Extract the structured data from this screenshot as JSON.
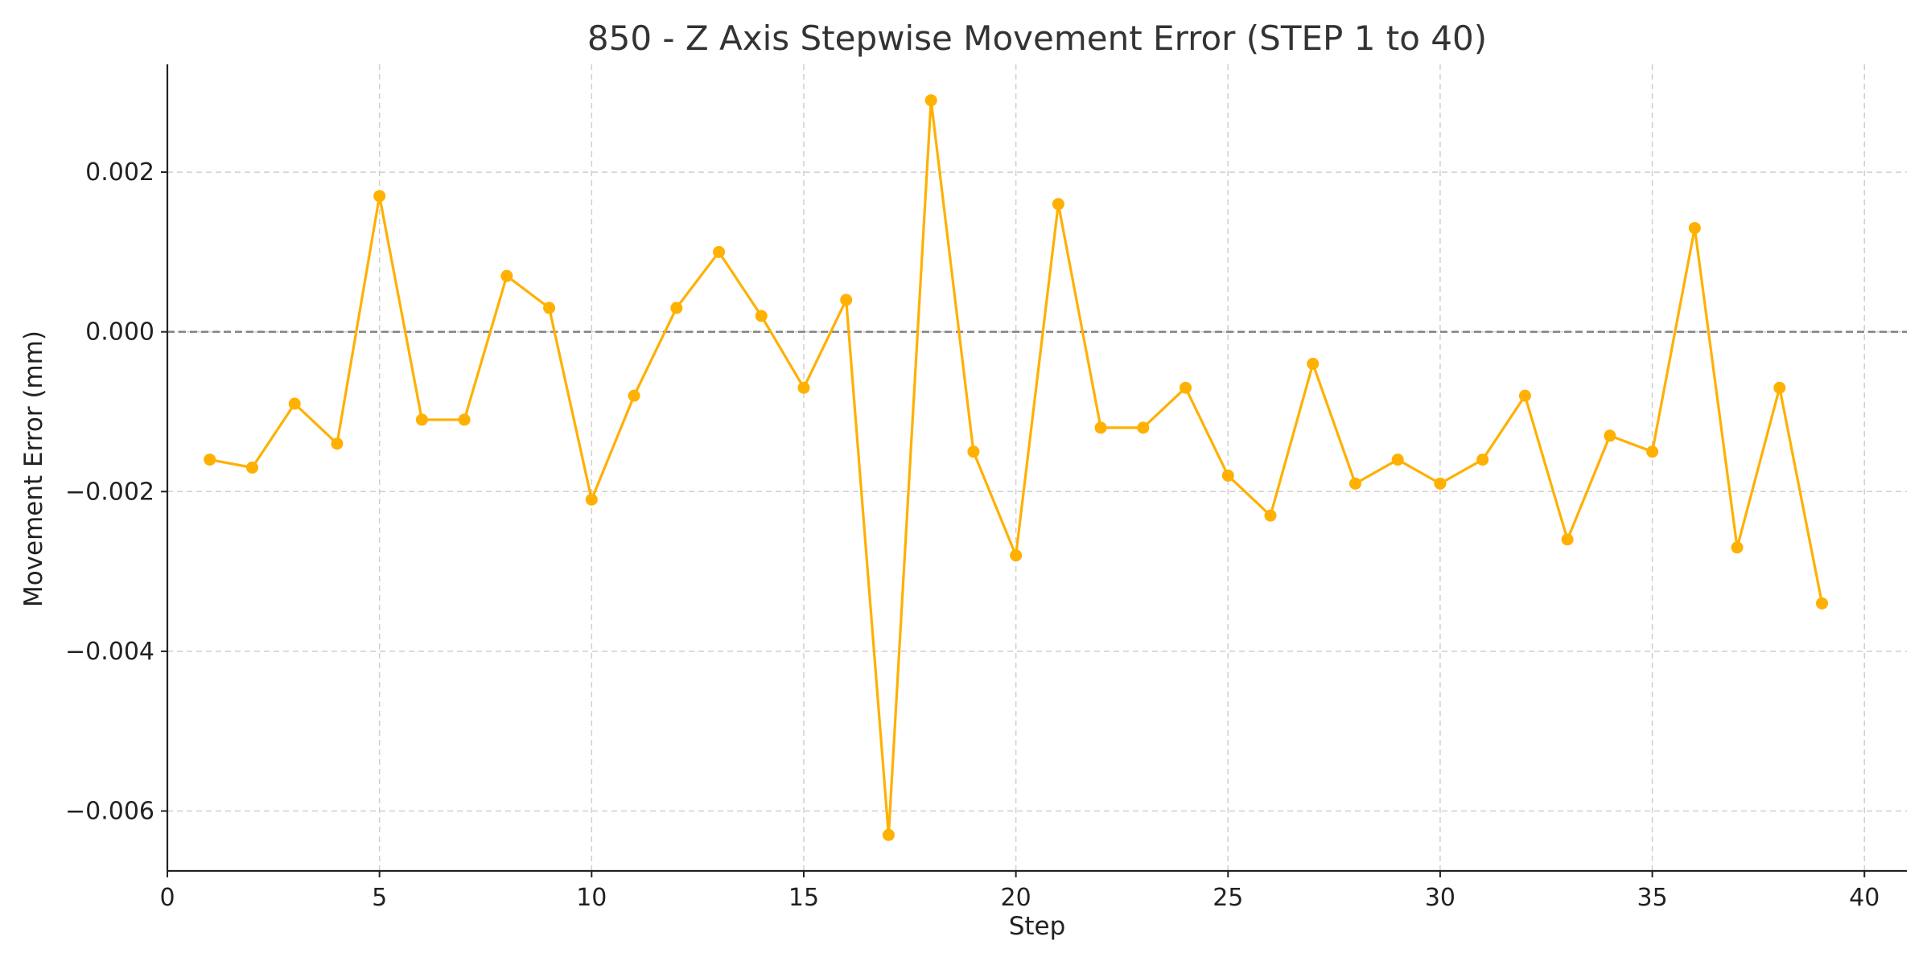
{
  "chart_data": {
    "type": "line",
    "title": "850 - Z Axis Stepwise Movement Error (STEP 1 to 40)",
    "xlabel": "Step",
    "ylabel": "Movement Error (mm)",
    "xlim": [
      0,
      41
    ],
    "ylim": [
      -0.00675,
      0.00335
    ],
    "x_ticks": [
      0,
      5,
      10,
      15,
      20,
      25,
      30,
      35,
      40
    ],
    "x_tick_labels": [
      "0",
      "5",
      "10",
      "15",
      "20",
      "25",
      "30",
      "35",
      "40"
    ],
    "y_ticks": [
      -0.006,
      -0.004,
      -0.002,
      0.0,
      0.002
    ],
    "y_tick_labels": [
      "−0.006",
      "−0.004",
      "−0.002",
      "0.000",
      "0.002"
    ],
    "grid": true,
    "reference_line": {
      "y": 0.0,
      "style": "dashed"
    },
    "series": [
      {
        "color": "#FFB000",
        "x": [
          1,
          2,
          3,
          4,
          5,
          6,
          7,
          8,
          9,
          10,
          11,
          12,
          13,
          14,
          15,
          16,
          17,
          18,
          19,
          20,
          21,
          22,
          23,
          24,
          25,
          26,
          27,
          28,
          29,
          30,
          31,
          32,
          33,
          34,
          35,
          36,
          37,
          38,
          39
        ],
        "values": [
          -0.0016,
          -0.0017,
          -0.0009,
          -0.0014,
          0.0017,
          -0.0011,
          -0.0011,
          0.0007,
          0.0003,
          -0.0021,
          -0.0008,
          0.0003,
          0.001,
          0.0002,
          -0.0007,
          0.0004,
          -0.0063,
          0.0029,
          -0.0015,
          -0.0028,
          0.0016,
          -0.0012,
          -0.0012,
          -0.0007,
          -0.0018,
          -0.0023,
          -0.0004,
          -0.0019,
          -0.0016,
          -0.0019,
          -0.0016,
          -0.0008,
          -0.0026,
          -0.0013,
          -0.0015,
          0.0013,
          -0.0027,
          -0.0007,
          -0.0034
        ]
      }
    ]
  }
}
